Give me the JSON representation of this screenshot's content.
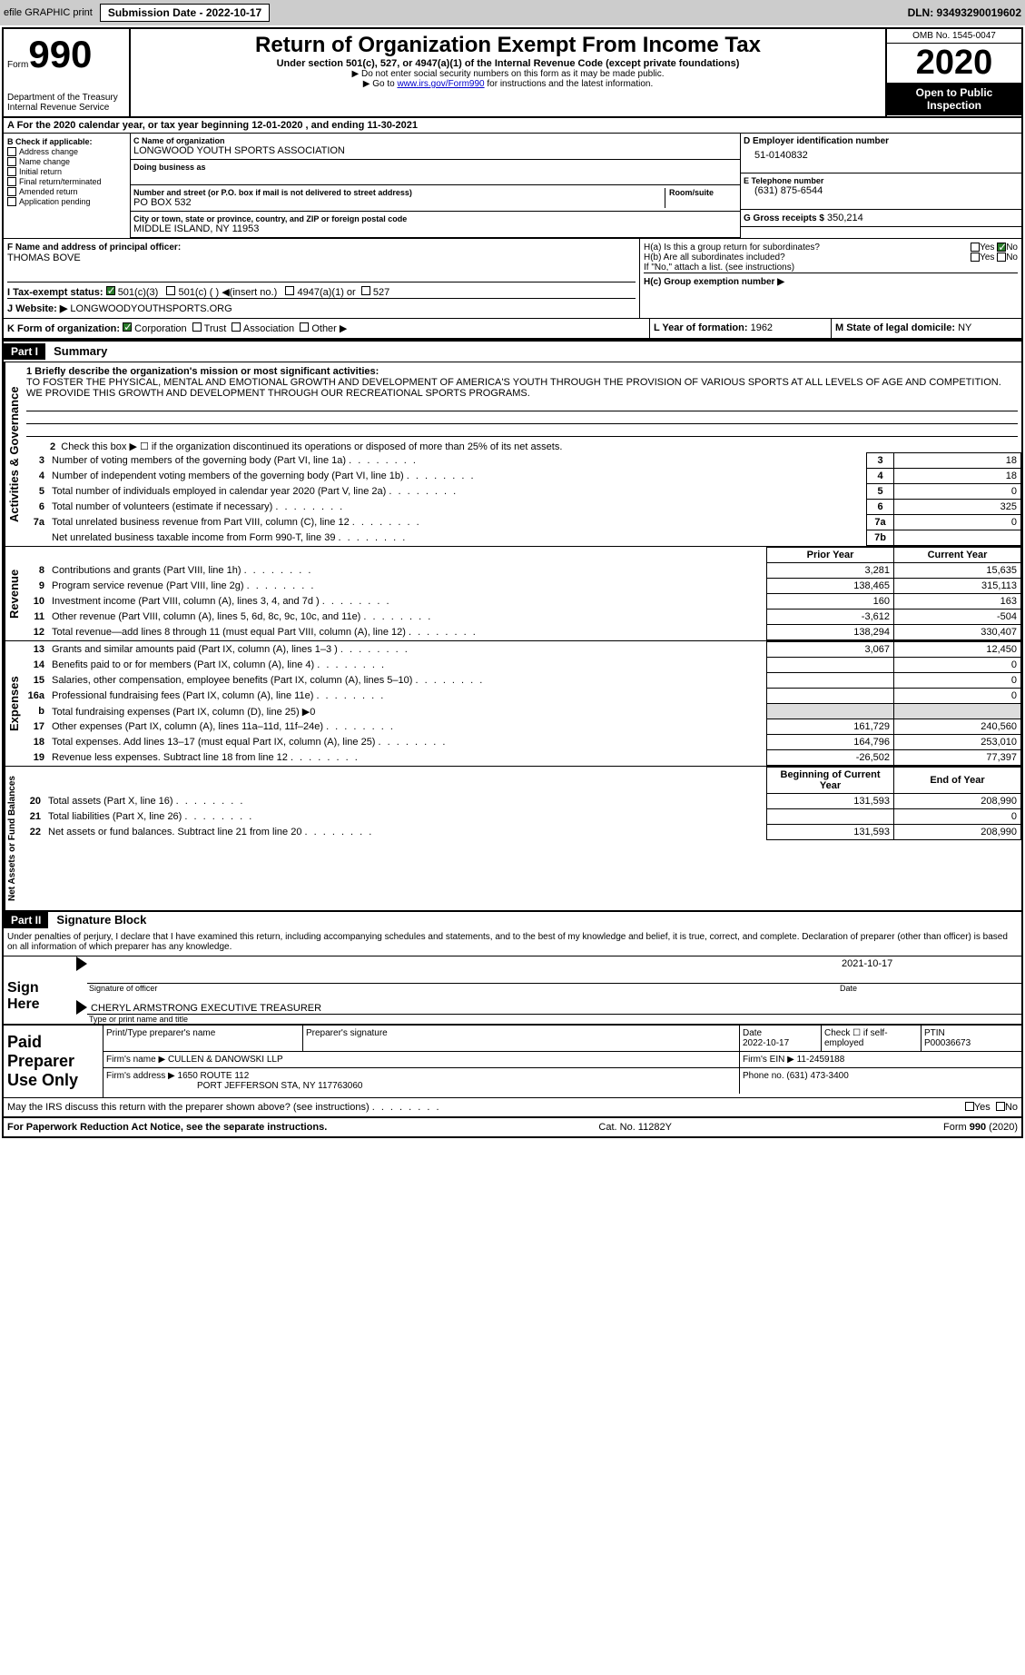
{
  "topbar": {
    "efile": "efile GRAPHIC print",
    "submission": "Submission Date - 2022-10-17",
    "dln": "DLN: 93493290019602"
  },
  "header": {
    "form_word": "Form",
    "form_num": "990",
    "title": "Return of Organization Exempt From Income Tax",
    "subtitle": "Under section 501(c), 527, or 4947(a)(1) of the Internal Revenue Code (except private foundations)",
    "note1": "▶ Do not enter social security numbers on this form as it may be made public.",
    "note2_pre": "▶ Go to ",
    "note2_link": "www.irs.gov/Form990",
    "note2_post": " for instructions and the latest information.",
    "dept": "Department of the Treasury\nInternal Revenue Service",
    "omb": "OMB No. 1545-0047",
    "year": "2020",
    "inspect": "Open to Public Inspection"
  },
  "period": "A For the 2020 calendar year, or tax year beginning 12-01-2020    , and ending 11-30-2021",
  "section_b": {
    "label": "B Check if applicable:",
    "items": [
      "Address change",
      "Name change",
      "Initial return",
      "Final return/terminated",
      "Amended return",
      "Application pending"
    ]
  },
  "section_c": {
    "name_label": "C Name of organization",
    "name": "LONGWOOD YOUTH SPORTS ASSOCIATION",
    "dba_label": "Doing business as",
    "addr_label": "Number and street (or P.O. box if mail is not delivered to street address)",
    "room": "Room/suite",
    "addr": "PO BOX 532",
    "city_label": "City or town, state or province, country, and ZIP or foreign postal code",
    "city": "MIDDLE ISLAND, NY  11953"
  },
  "section_d": {
    "label": "D Employer identification number",
    "val": "51-0140832"
  },
  "section_e": {
    "label": "E Telephone number",
    "val": "(631) 875-6544"
  },
  "section_g": {
    "label": "G Gross receipts $",
    "val": "350,214"
  },
  "section_f": {
    "label": "F  Name and address of principal officer:",
    "val": "THOMAS BOVE"
  },
  "section_h": {
    "ha": "H(a)  Is this a group return for subordinates?",
    "hb": "H(b)  Are all subordinates included?",
    "hb_note": "If \"No,\" attach a list. (see instructions)",
    "hc": "H(c)  Group exemption number ▶",
    "yes": "Yes",
    "no": "No"
  },
  "section_i": {
    "label": "I  Tax-exempt status:",
    "opts": [
      "501(c)(3)",
      "501(c) (  ) ◀(insert no.)",
      "4947(a)(1) or",
      "527"
    ]
  },
  "section_j": {
    "label": "J  Website: ▶",
    "val": "LONGWOODYOUTHSPORTS.ORG"
  },
  "section_k": {
    "label": "K Form of organization:",
    "opts": [
      "Corporation",
      "Trust",
      "Association",
      "Other ▶"
    ]
  },
  "section_l": {
    "label": "L Year of formation:",
    "val": "1962"
  },
  "section_m": {
    "label": "M State of legal domicile:",
    "val": "NY"
  },
  "part1": {
    "hdr": "Part I",
    "title": "Summary",
    "line1_label": "1  Briefly describe the organization's mission or most significant activities:",
    "mission": "TO FOSTER THE PHYSICAL, MENTAL AND EMOTIONAL GROWTH AND DEVELOPMENT OF AMERICA'S YOUTH THROUGH THE PROVISION OF VARIOUS SPORTS AT ALL LEVELS OF AGE AND COMPETITION. WE PROVIDE THIS GROWTH AND DEVELOPMENT THROUGH OUR RECREATIONAL SPORTS PROGRAMS.",
    "tabs": {
      "governance": "Activities & Governance",
      "revenue": "Revenue",
      "expenses": "Expenses",
      "netassets": "Net Assets or Fund Balances"
    },
    "line2": "Check this box ▶ ☐ if the organization discontinued its operations or disposed of more than 25% of its net assets.",
    "gov_rows": [
      {
        "n": "3",
        "d": "Number of voting members of the governing body (Part VI, line 1a)",
        "b": "3",
        "v": "18"
      },
      {
        "n": "4",
        "d": "Number of independent voting members of the governing body (Part VI, line 1b)",
        "b": "4",
        "v": "18"
      },
      {
        "n": "5",
        "d": "Total number of individuals employed in calendar year 2020 (Part V, line 2a)",
        "b": "5",
        "v": "0"
      },
      {
        "n": "6",
        "d": "Total number of volunteers (estimate if necessary)",
        "b": "6",
        "v": "325"
      },
      {
        "n": "7a",
        "d": "Total unrelated business revenue from Part VIII, column (C), line 12",
        "b": "7a",
        "v": "0"
      },
      {
        "n": "",
        "d": "Net unrelated business taxable income from Form 990-T, line 39",
        "b": "7b",
        "v": ""
      }
    ],
    "col_hdrs": {
      "prior": "Prior Year",
      "current": "Current Year"
    },
    "rev_rows": [
      {
        "n": "8",
        "d": "Contributions and grants (Part VIII, line 1h)",
        "p": "3,281",
        "c": "15,635"
      },
      {
        "n": "9",
        "d": "Program service revenue (Part VIII, line 2g)",
        "p": "138,465",
        "c": "315,113"
      },
      {
        "n": "10",
        "d": "Investment income (Part VIII, column (A), lines 3, 4, and 7d )",
        "p": "160",
        "c": "163"
      },
      {
        "n": "11",
        "d": "Other revenue (Part VIII, column (A), lines 5, 6d, 8c, 9c, 10c, and 11e)",
        "p": "-3,612",
        "c": "-504"
      },
      {
        "n": "12",
        "d": "Total revenue—add lines 8 through 11 (must equal Part VIII, column (A), line 12)",
        "p": "138,294",
        "c": "330,407"
      }
    ],
    "exp_rows": [
      {
        "n": "13",
        "d": "Grants and similar amounts paid (Part IX, column (A), lines 1–3 )",
        "p": "3,067",
        "c": "12,450"
      },
      {
        "n": "14",
        "d": "Benefits paid to or for members (Part IX, column (A), line 4)",
        "p": "",
        "c": "0"
      },
      {
        "n": "15",
        "d": "Salaries, other compensation, employee benefits (Part IX, column (A), lines 5–10)",
        "p": "",
        "c": "0"
      },
      {
        "n": "16a",
        "d": "Professional fundraising fees (Part IX, column (A), line 11e)",
        "p": "",
        "c": "0"
      },
      {
        "n": "b",
        "d": "Total fundraising expenses (Part IX, column (D), line 25) ▶0",
        "p": "",
        "c": ""
      },
      {
        "n": "17",
        "d": "Other expenses (Part IX, column (A), lines 11a–11d, 11f–24e)",
        "p": "161,729",
        "c": "240,560"
      },
      {
        "n": "18",
        "d": "Total expenses. Add lines 13–17 (must equal Part IX, column (A), line 25)",
        "p": "164,796",
        "c": "253,010"
      },
      {
        "n": "19",
        "d": "Revenue less expenses. Subtract line 18 from line 12",
        "p": "-26,502",
        "c": "77,397"
      }
    ],
    "net_hdrs": {
      "begin": "Beginning of Current Year",
      "end": "End of Year"
    },
    "net_rows": [
      {
        "n": "20",
        "d": "Total assets (Part X, line 16)",
        "p": "131,593",
        "c": "208,990"
      },
      {
        "n": "21",
        "d": "Total liabilities (Part X, line 26)",
        "p": "",
        "c": "0"
      },
      {
        "n": "22",
        "d": "Net assets or fund balances. Subtract line 21 from line 20",
        "p": "131,593",
        "c": "208,990"
      }
    ]
  },
  "part2": {
    "hdr": "Part II",
    "title": "Signature Block",
    "perjury": "Under penalties of perjury, I declare that I have examined this return, including accompanying schedules and statements, and to the best of my knowledge and belief, it is true, correct, and complete. Declaration of preparer (other than officer) is based on all information of which preparer has any knowledge.",
    "sign_here": "Sign Here",
    "sig_officer": "Signature of officer",
    "sig_date": "2021-10-17",
    "date": "Date",
    "name_title": "CHERYL ARMSTRONG  EXECUTIVE TREASURER",
    "type_name": "Type or print name and title",
    "paid_prep": "Paid Preparer Use Only",
    "prep_name_lbl": "Print/Type preparer's name",
    "prep_sig_lbl": "Preparer's signature",
    "prep_date_lbl": "Date",
    "prep_date": "2022-10-17",
    "self_emp": "Check ☐ if self-employed",
    "ptin_lbl": "PTIN",
    "ptin": "P00036673",
    "firm_name_lbl": "Firm's name    ▶",
    "firm_name": "CULLEN & DANOWSKI LLP",
    "firm_ein_lbl": "Firm's EIN ▶",
    "firm_ein": "11-2459188",
    "firm_addr_lbl": "Firm's address ▶",
    "firm_addr1": "1650 ROUTE 112",
    "firm_addr2": "PORT JEFFERSON STA, NY  117763060",
    "phone_lbl": "Phone no.",
    "phone": "(631) 473-3400",
    "discuss": "May the IRS discuss this return with the preparer shown above? (see instructions)",
    "yes": "Yes",
    "no": "No"
  },
  "footer": {
    "left": "For Paperwork Reduction Act Notice, see the separate instructions.",
    "mid": "Cat. No. 11282Y",
    "right": "Form 990 (2020)"
  }
}
